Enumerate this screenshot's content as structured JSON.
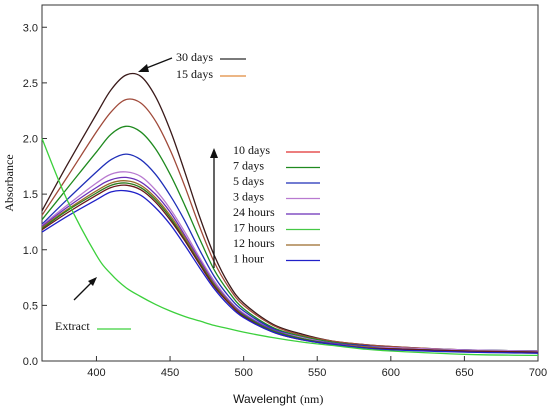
{
  "chart_data": {
    "type": "line",
    "xlabel": "Wavelenght",
    "xlabel_unit": "(nm)",
    "ylabel": "Absorbance",
    "xlim": [
      363,
      700
    ],
    "ylim": [
      0,
      3.2
    ],
    "x_ticks": [
      "400",
      "450",
      "500",
      "550",
      "600",
      "650",
      "700"
    ],
    "y_ticks": [
      "0.0",
      "0.5",
      "1.0",
      "1.5",
      "2.0",
      "2.5",
      "3.0"
    ],
    "grid": false,
    "legend_top": [
      {
        "label": "30 days",
        "color": "#2b2b2b"
      },
      {
        "label": "15 days",
        "color": "#e08a3c"
      }
    ],
    "legend_middle": [
      {
        "label": "10 days",
        "color": "#e03030"
      },
      {
        "label": "7 days",
        "color": "#1f8a1f"
      },
      {
        "label": "5 days",
        "color": "#1f2fb8"
      },
      {
        "label": "3 days",
        "color": "#b87ad0"
      },
      {
        "label": "24 hours",
        "color": "#6a2fb8"
      },
      {
        "label": "17 hours",
        "color": "#45c845"
      },
      {
        "label": "12 hours",
        "color": "#9a6a2a"
      },
      {
        "label": "1 hour",
        "color": "#2020c8"
      }
    ],
    "legend_extract": {
      "label": "Extract",
      "color": "#3cd03c"
    },
    "x": [
      363,
      380,
      400,
      410,
      420,
      430,
      440,
      450,
      460,
      470,
      480,
      490,
      500,
      520,
      540,
      560,
      580,
      600,
      650,
      700
    ],
    "series": [
      {
        "name": "30 days",
        "color": "#3a1a1a",
        "values": [
          1.35,
          1.76,
          2.22,
          2.44,
          2.57,
          2.56,
          2.38,
          2.08,
          1.7,
          1.3,
          0.95,
          0.69,
          0.52,
          0.33,
          0.24,
          0.18,
          0.15,
          0.13,
          0.1,
          0.09
        ]
      },
      {
        "name": "15 days",
        "color": "#a04a3a",
        "values": [
          1.31,
          1.65,
          2.06,
          2.24,
          2.35,
          2.32,
          2.16,
          1.9,
          1.57,
          1.21,
          0.89,
          0.66,
          0.5,
          0.32,
          0.23,
          0.18,
          0.15,
          0.13,
          0.1,
          0.09
        ]
      },
      {
        "name": "10 days",
        "color": "#1f8a1f",
        "values": [
          1.27,
          1.55,
          1.88,
          2.04,
          2.11,
          2.06,
          1.91,
          1.68,
          1.4,
          1.1,
          0.82,
          0.62,
          0.47,
          0.3,
          0.22,
          0.17,
          0.14,
          0.12,
          0.1,
          0.09
        ]
      },
      {
        "name": "7 days",
        "color": "#1f2fb8",
        "values": [
          1.23,
          1.45,
          1.7,
          1.81,
          1.86,
          1.81,
          1.68,
          1.49,
          1.26,
          1.0,
          0.76,
          0.58,
          0.45,
          0.29,
          0.21,
          0.16,
          0.14,
          0.12,
          0.1,
          0.09
        ]
      },
      {
        "name": "5 days",
        "color": "#b87ad0",
        "values": [
          1.22,
          1.4,
          1.6,
          1.68,
          1.7,
          1.66,
          1.54,
          1.37,
          1.16,
          0.93,
          0.72,
          0.55,
          0.43,
          0.28,
          0.21,
          0.16,
          0.13,
          0.12,
          0.1,
          0.09
        ]
      },
      {
        "name": "3 days",
        "color": "#6a2fb8",
        "values": [
          1.21,
          1.38,
          1.56,
          1.63,
          1.65,
          1.61,
          1.5,
          1.34,
          1.13,
          0.91,
          0.7,
          0.54,
          0.42,
          0.28,
          0.2,
          0.16,
          0.13,
          0.11,
          0.09,
          0.08
        ]
      },
      {
        "name": "24 hours",
        "color": "#9a6a2a",
        "values": [
          1.2,
          1.36,
          1.53,
          1.6,
          1.62,
          1.58,
          1.47,
          1.31,
          1.11,
          0.89,
          0.69,
          0.53,
          0.41,
          0.27,
          0.2,
          0.15,
          0.13,
          0.11,
          0.09,
          0.08
        ]
      },
      {
        "name": "17 hours",
        "color": "#2d7a1a",
        "values": [
          1.19,
          1.35,
          1.51,
          1.58,
          1.6,
          1.56,
          1.45,
          1.29,
          1.09,
          0.88,
          0.68,
          0.52,
          0.41,
          0.27,
          0.2,
          0.15,
          0.12,
          0.11,
          0.09,
          0.08
        ]
      },
      {
        "name": "12 hours",
        "color": "#6a1a1a",
        "values": [
          1.18,
          1.33,
          1.49,
          1.56,
          1.58,
          1.54,
          1.43,
          1.27,
          1.08,
          0.87,
          0.67,
          0.52,
          0.4,
          0.26,
          0.19,
          0.15,
          0.12,
          0.11,
          0.09,
          0.08
        ]
      },
      {
        "name": "1 hour",
        "color": "#2020c8",
        "values": [
          1.16,
          1.3,
          1.45,
          1.52,
          1.53,
          1.49,
          1.38,
          1.23,
          1.04,
          0.84,
          0.65,
          0.5,
          0.39,
          0.26,
          0.19,
          0.15,
          0.12,
          0.1,
          0.08,
          0.07
        ]
      },
      {
        "name": "Extract",
        "color": "#3cd03c",
        "values": [
          2.0,
          1.45,
          0.95,
          0.78,
          0.66,
          0.58,
          0.51,
          0.45,
          0.4,
          0.36,
          0.32,
          0.29,
          0.26,
          0.21,
          0.17,
          0.14,
          0.11,
          0.09,
          0.06,
          0.05
        ]
      }
    ]
  }
}
